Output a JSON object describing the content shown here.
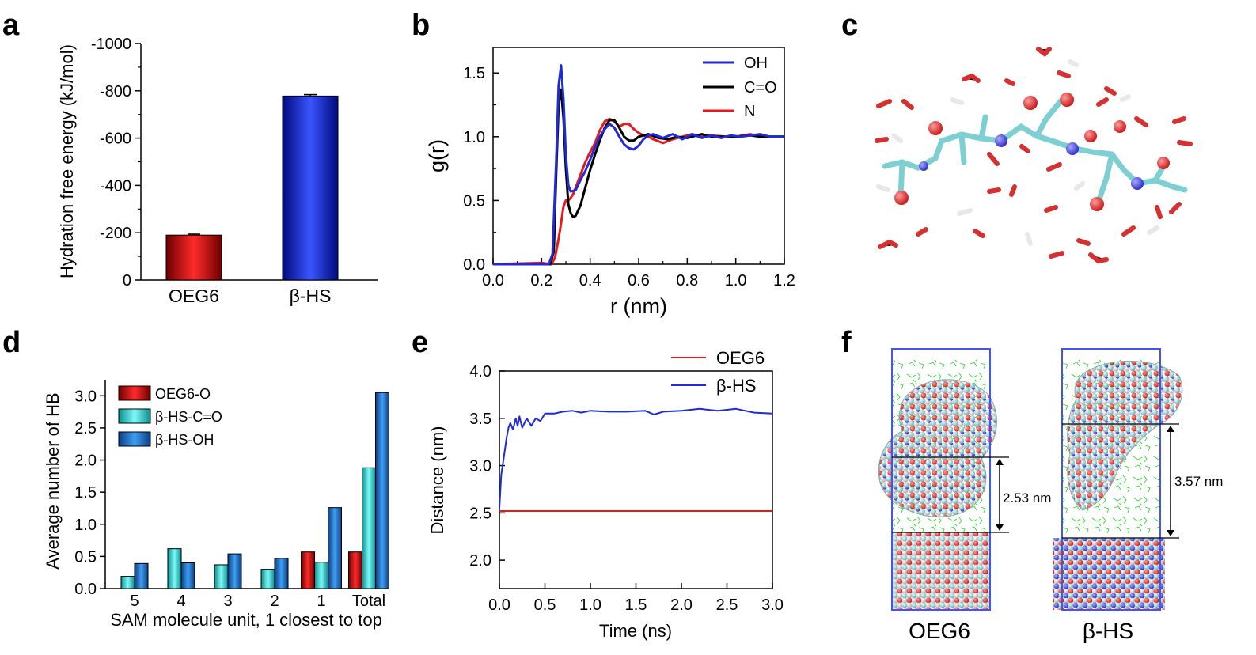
{
  "figure": {
    "panels": {
      "a": "a",
      "b": "b",
      "c": "c",
      "d": "d",
      "e": "e",
      "f": "f"
    }
  },
  "chart_data": [
    {
      "id": "a",
      "type": "bar",
      "categories": [
        "OEG6",
        "β-HS"
      ],
      "values": [
        -190,
        -778
      ],
      "errors": [
        4,
        6
      ],
      "colors": [
        "#cc1111",
        "#1a33cc"
      ],
      "title": "",
      "xlabel": "",
      "ylabel": "Hydration free energy (kJ/mol)",
      "ylim": [
        0,
        -1000
      ],
      "yticks": [
        0,
        -200,
        -400,
        -600,
        -800,
        -1000
      ],
      "ytick_labels": [
        "0",
        "-200",
        "-400",
        "-600",
        "-800",
        "-1000"
      ]
    },
    {
      "id": "b",
      "type": "line",
      "xlabel": "r (nm)",
      "ylabel": "g(r)",
      "xlim": [
        0,
        1.2
      ],
      "ylim": [
        0,
        1.7
      ],
      "xticks": [
        0,
        0.2,
        0.4,
        0.6,
        0.8,
        1.0,
        1.2
      ],
      "xtick_labels": [
        "0.0",
        "0.2",
        "0.4",
        "0.6",
        "0.8",
        "1.0",
        "1.2"
      ],
      "yticks": [
        0,
        0.5,
        1.0,
        1.5
      ],
      "ytick_labels": [
        "0.0",
        "0.5",
        "1.0",
        "1.5"
      ],
      "legend_position": "top-right",
      "series": [
        {
          "name": "OH",
          "color": "#1f2bd6",
          "x": [
            0,
            0.2,
            0.23,
            0.245,
            0.26,
            0.27,
            0.28,
            0.29,
            0.3,
            0.31,
            0.32,
            0.34,
            0.36,
            0.38,
            0.4,
            0.42,
            0.44,
            0.46,
            0.48,
            0.5,
            0.52,
            0.54,
            0.56,
            0.58,
            0.6,
            0.62,
            0.64,
            0.66,
            0.7,
            0.74,
            0.78,
            0.82,
            0.86,
            0.9,
            0.94,
            0.98,
            1.02,
            1.06,
            1.1,
            1.14,
            1.2
          ],
          "y": [
            0,
            0.0,
            0.0,
            0.08,
            0.8,
            1.4,
            1.56,
            1.3,
            0.85,
            0.62,
            0.57,
            0.58,
            0.66,
            0.73,
            0.82,
            0.92,
            1.0,
            1.06,
            1.1,
            1.07,
            1.0,
            0.94,
            0.91,
            0.9,
            0.93,
            0.98,
            1.01,
            1.02,
            0.99,
            1.02,
            0.98,
            1.02,
            0.99,
            1.01,
            0.99,
            1.01,
            1.0,
            1.01,
            1.02,
            1.0,
            1.0
          ]
        },
        {
          "name": "C=O",
          "color": "#000000",
          "x": [
            0,
            0.2,
            0.235,
            0.25,
            0.26,
            0.27,
            0.28,
            0.29,
            0.3,
            0.31,
            0.32,
            0.33,
            0.34,
            0.36,
            0.38,
            0.4,
            0.42,
            0.44,
            0.46,
            0.48,
            0.5,
            0.52,
            0.54,
            0.56,
            0.58,
            0.6,
            0.64,
            0.68,
            0.72,
            0.76,
            0.8,
            0.86,
            0.9,
            0.96,
            1.0,
            1.06,
            1.1,
            1.2
          ],
          "y": [
            0,
            0.0,
            0.0,
            0.1,
            0.7,
            1.25,
            1.37,
            1.15,
            0.75,
            0.47,
            0.4,
            0.37,
            0.38,
            0.46,
            0.6,
            0.74,
            0.86,
            0.97,
            1.07,
            1.13,
            1.13,
            1.07,
            1.0,
            0.97,
            0.97,
            1.0,
            1.02,
            0.99,
            0.98,
            1.0,
            0.99,
            1.02,
            1.0,
            1.0,
            1.0,
            1.01,
            1.0,
            1.0
          ]
        },
        {
          "name": "N",
          "color": "#e41a1c",
          "x": [
            0,
            0.2,
            0.24,
            0.255,
            0.27,
            0.28,
            0.29,
            0.3,
            0.31,
            0.32,
            0.33,
            0.34,
            0.36,
            0.38,
            0.4,
            0.42,
            0.44,
            0.46,
            0.48,
            0.5,
            0.52,
            0.54,
            0.56,
            0.58,
            0.6,
            0.62,
            0.64,
            0.66,
            0.7,
            0.74,
            0.78,
            0.82,
            0.86,
            0.9,
            0.96,
            1.0,
            1.06,
            1.1,
            1.2
          ],
          "y": [
            0,
            0.01,
            0.0,
            0.05,
            0.2,
            0.32,
            0.45,
            0.5,
            0.5,
            0.52,
            0.55,
            0.6,
            0.7,
            0.8,
            0.88,
            0.95,
            1.05,
            1.12,
            1.14,
            1.12,
            1.08,
            1.1,
            1.1,
            1.06,
            1.03,
            1.01,
            1.0,
            0.98,
            0.95,
            0.98,
            1.0,
            1.02,
            1.0,
            1.01,
            1.0,
            1.0,
            1.02,
            1.0,
            1.0
          ]
        }
      ]
    },
    {
      "id": "d",
      "type": "bar",
      "categories": [
        "5",
        "4",
        "3",
        "2",
        "1",
        "Total"
      ],
      "xlabel": "SAM molecule unit, 1 closest to top",
      "ylabel": "Average number of HB",
      "ylim": [
        0,
        3.25
      ],
      "yticks": [
        0,
        0.5,
        1.0,
        1.5,
        2.0,
        2.5,
        3.0
      ],
      "ytick_labels": [
        "0.0",
        "0.5",
        "1.0",
        "1.5",
        "2.0",
        "2.5",
        "3.0"
      ],
      "legend_position": "top-left",
      "series": [
        {
          "name": "OEG6-O",
          "color": "#cc1111",
          "values": [
            null,
            null,
            null,
            null,
            0.57,
            0.57
          ]
        },
        {
          "name": "β-HS-C=O",
          "color": "#33dddd",
          "values": [
            0.19,
            0.62,
            0.37,
            0.3,
            0.41,
            1.88
          ]
        },
        {
          "name": "β-HS-OH",
          "color": "#1e78d2",
          "values": [
            0.39,
            0.4,
            0.54,
            0.47,
            1.26,
            3.05
          ]
        }
      ]
    },
    {
      "id": "e",
      "type": "line",
      "xlabel": "Time (ns)",
      "ylabel": "Distance (nm)",
      "xlim": [
        0,
        3.0
      ],
      "ylim": [
        1.7,
        4.0
      ],
      "xticks": [
        0,
        0.5,
        1.0,
        1.5,
        2.0,
        2.5,
        3.0
      ],
      "xtick_labels": [
        "0.0",
        "0.5",
        "1.0",
        "1.5",
        "2.0",
        "2.5",
        "3.0"
      ],
      "yticks": [
        2.0,
        2.5,
        3.0,
        3.5,
        4.0
      ],
      "ytick_labels": [
        "2.0",
        "2.5",
        "3.0",
        "3.5",
        "4.0"
      ],
      "legend_position": "top-right",
      "series": [
        {
          "name": "OEG6",
          "color": "#e41a1c",
          "x": [
            0,
            0.5,
            1.0,
            1.5,
            2.0,
            2.5,
            3.0
          ],
          "y": [
            2.52,
            2.52,
            2.52,
            2.52,
            2.52,
            2.52,
            2.52
          ]
        },
        {
          "name": "β-HS",
          "color": "#1f2bd6",
          "x": [
            0,
            0.02,
            0.05,
            0.08,
            0.1,
            0.12,
            0.15,
            0.18,
            0.2,
            0.22,
            0.25,
            0.3,
            0.35,
            0.4,
            0.45,
            0.5,
            0.6,
            0.7,
            0.8,
            0.9,
            1.0,
            1.2,
            1.4,
            1.6,
            1.7,
            1.8,
            2.0,
            2.2,
            2.4,
            2.6,
            2.8,
            3.0
          ],
          "y": [
            2.55,
            2.9,
            3.1,
            3.3,
            3.4,
            3.45,
            3.38,
            3.5,
            3.42,
            3.52,
            3.4,
            3.5,
            3.42,
            3.5,
            3.47,
            3.55,
            3.55,
            3.57,
            3.58,
            3.56,
            3.58,
            3.57,
            3.57,
            3.58,
            3.54,
            3.57,
            3.58,
            3.6,
            3.58,
            3.6,
            3.56,
            3.55
          ]
        }
      ]
    }
  ],
  "panel_a": {
    "ylabel": "Hydration free energy (kJ/mol)",
    "ytick_labels": [
      "0",
      "-200",
      "-400",
      "-600",
      "-800",
      "-1000"
    ],
    "categories": [
      "OEG6",
      "β-HS"
    ]
  },
  "panel_b": {
    "ylabel": "g(r)",
    "xlabel": "r (nm)",
    "legend": [
      "OH",
      "C=O",
      "N"
    ],
    "xtick_labels": [
      "0.0",
      "0.2",
      "0.4",
      "0.6",
      "0.8",
      "1.0",
      "1.2"
    ],
    "ytick_labels": [
      "0.0",
      "0.5",
      "1.0",
      "1.5"
    ]
  },
  "panel_d": {
    "ylabel": "Average number of HB",
    "xlabel": "SAM molecule unit, 1 closest to top",
    "legend": [
      "OEG6-O",
      "β-HS-C=O",
      "β-HS-OH"
    ],
    "categories": [
      "5",
      "4",
      "3",
      "2",
      "1",
      "Total"
    ],
    "ytick_labels": [
      "0.0",
      "0.5",
      "1.0",
      "1.5",
      "2.0",
      "2.5",
      "3.0"
    ]
  },
  "panel_e": {
    "ylabel": "Distance (nm)",
    "xlabel": "Time (ns)",
    "legend": [
      "OEG6",
      "β-HS"
    ],
    "xtick_labels": [
      "0.0",
      "0.5",
      "1.0",
      "1.5",
      "2.0",
      "2.5",
      "3.0"
    ],
    "ytick_labels": [
      "2.0",
      "2.5",
      "3.0",
      "3.5",
      "4.0"
    ]
  },
  "panel_f": {
    "left_caption": "OEG6",
    "right_caption": "β-HS",
    "left_distance": "2.53 nm",
    "right_distance": "3.57 nm"
  },
  "colors": {
    "red": "#cc1111",
    "blue": "#1a33cc",
    "cyan": "#33dddd",
    "mid_blue": "#1e78d2",
    "water_green": "#22dd22",
    "box_blue": "#3355ee",
    "carbon_teal": "#6ec8c8",
    "oxygen_red": "#d62828",
    "nitrogen_blue": "#4444dd"
  }
}
